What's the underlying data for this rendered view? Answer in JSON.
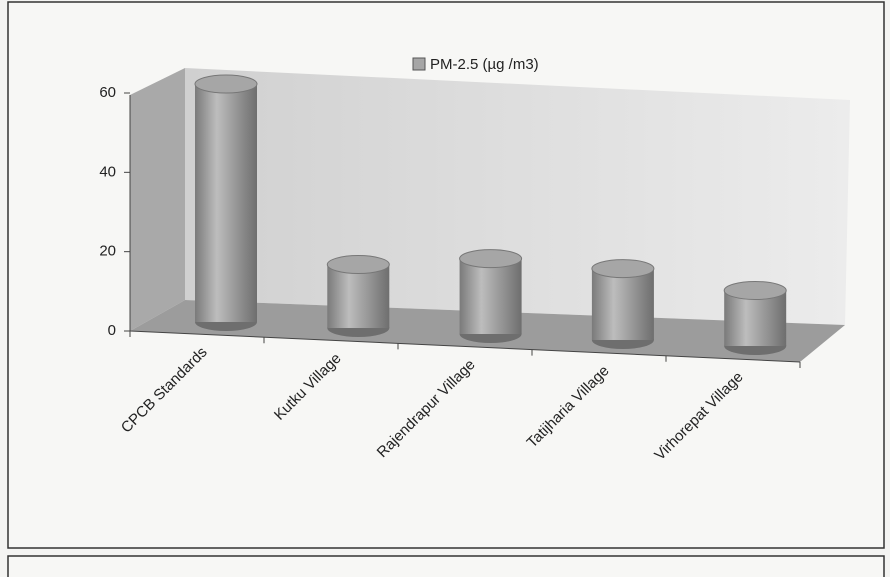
{
  "chart_data": {
    "type": "bar3d",
    "series": [
      {
        "name": "PM-2.5 (µg /m3)",
        "color": "#a6a6a6",
        "values": [
          60,
          16,
          19,
          18,
          14
        ]
      }
    ],
    "categories": [
      "CPCB Standards",
      "Kutku Village",
      "Rajendrapur Village",
      "Tatijharia Village",
      "Virhorepat Village"
    ],
    "ylim": [
      0,
      60
    ],
    "yticks": [
      0,
      20,
      40,
      60
    ],
    "legend": "top"
  }
}
